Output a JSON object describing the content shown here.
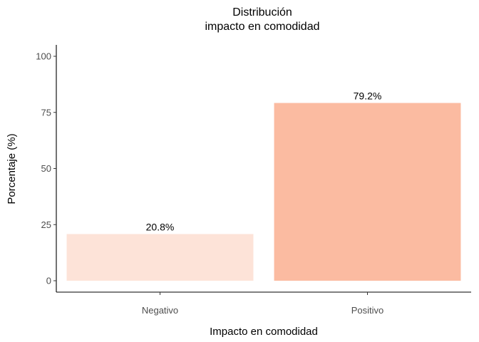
{
  "chart_data": {
    "type": "bar",
    "title_line1": "Distribución",
    "title_line2": "impacto en comodidad",
    "xlabel": "Impacto en comodidad",
    "ylabel": "Porcentaje (%)",
    "categories": [
      "Negativo",
      "Positivo"
    ],
    "values": [
      20.8,
      79.2
    ],
    "value_labels": [
      "20.8%",
      "79.2%"
    ],
    "colors": [
      "#fde3d8",
      "#fbbba1"
    ],
    "ylim": [
      0,
      100
    ],
    "yticks": [
      0,
      25,
      50,
      75,
      100
    ],
    "ytick_labels": [
      "0",
      "25",
      "50",
      "75",
      "100"
    ],
    "grid": false,
    "legend": "none"
  }
}
